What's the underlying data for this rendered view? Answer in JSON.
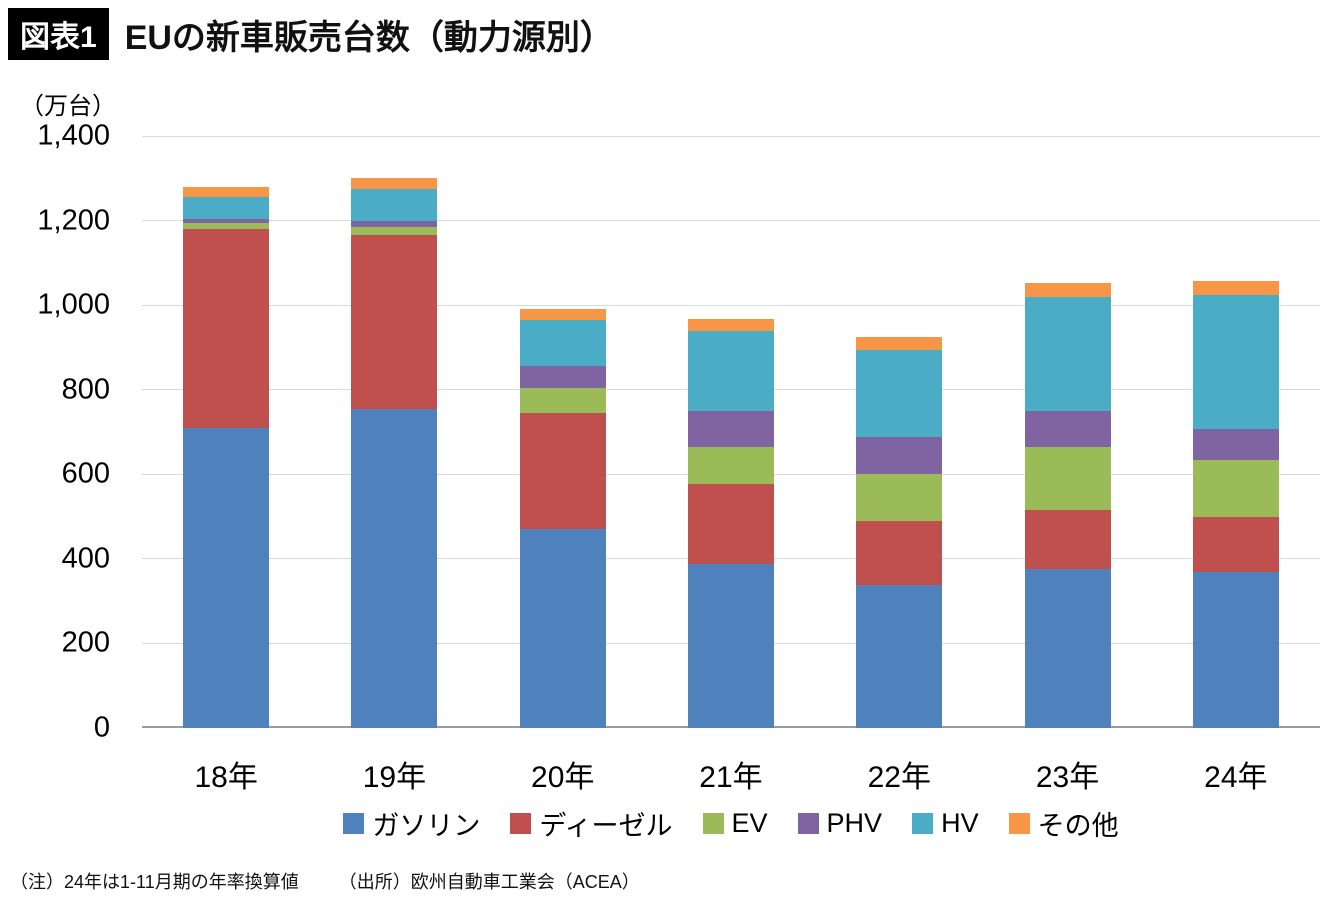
{
  "header": {
    "badge": "図表1"
  },
  "chart_data": {
    "type": "bar",
    "stacked": true,
    "title": "EUの新車販売台数（動力源別）",
    "ylabel": "（万台）",
    "xlabel": "",
    "categories": [
      "18年",
      "19年",
      "20年",
      "21年",
      "22年",
      "23年",
      "24年"
    ],
    "series": [
      {
        "name": "ガソリン",
        "color": "#4f81bd",
        "values": [
          710,
          755,
          470,
          388,
          338,
          375,
          368
        ]
      },
      {
        "name": "ディーゼル",
        "color": "#c0504d",
        "values": [
          470,
          410,
          275,
          190,
          152,
          140,
          130
        ]
      },
      {
        "name": "EV",
        "color": "#9bbb59",
        "values": [
          15,
          20,
          60,
          87,
          110,
          150,
          137
        ]
      },
      {
        "name": "PHV",
        "color": "#8064a2",
        "values": [
          10,
          15,
          50,
          85,
          88,
          85,
          73
        ]
      },
      {
        "name": "HV",
        "color": "#4bacc6",
        "values": [
          50,
          75,
          110,
          190,
          207,
          270,
          317
        ]
      },
      {
        "name": "その他",
        "color": "#f79646",
        "values": [
          25,
          25,
          25,
          28,
          30,
          33,
          33
        ]
      }
    ],
    "totals": [
      1280,
      1300,
      990,
      968,
      925,
      1053,
      1058
    ],
    "ylim": [
      0,
      1400
    ],
    "yticks": [
      "0",
      "200",
      "400",
      "600",
      "800",
      "1,000",
      "1,200",
      "1,400"
    ],
    "grid": true,
    "gridline_color": "#d9d9d9",
    "axis_line_color": "#9b9b9b",
    "legend_position": "bottom"
  },
  "footer": {
    "note": "（注）24年は1-11月期の年率換算値",
    "source": "（出所）欧州自動車工業会（ACEA）"
  }
}
